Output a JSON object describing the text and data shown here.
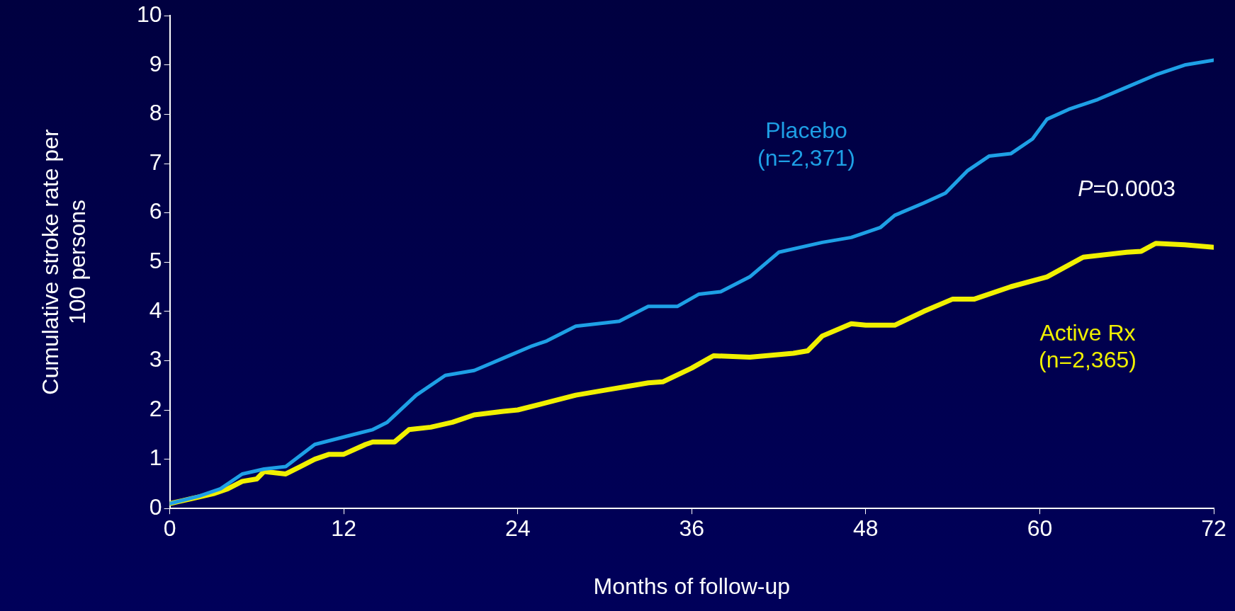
{
  "chart_data": {
    "type": "line",
    "xlabel": "Months of follow-up",
    "ylabel": "Cumulative stroke rate per 100 persons",
    "xlim": [
      0,
      72
    ],
    "xticks": [
      0,
      12,
      24,
      36,
      48,
      60,
      72
    ],
    "ylim": [
      0,
      10
    ],
    "yticks": [
      0,
      1,
      2,
      3,
      4,
      5,
      6,
      7,
      8,
      9,
      10
    ],
    "grid": false,
    "legend": false,
    "marker": "none",
    "line_style": "solid",
    "annotations": [
      "P=0.0003"
    ],
    "series": [
      {
        "name": "Placebo (n=2,371)",
        "color": "#1ea0e6",
        "x": [
          0,
          2,
          3.5,
          5,
          6.5,
          8,
          10,
          12,
          14,
          15,
          17,
          19,
          21,
          23,
          25,
          26,
          28,
          31,
          33,
          35,
          36.5,
          38,
          40,
          42,
          45,
          47,
          49,
          50,
          52,
          53.5,
          55,
          56.5,
          58,
          59.5,
          60.5,
          62,
          64,
          66,
          68,
          70,
          72
        ],
        "values": [
          0.1,
          0.25,
          0.4,
          0.7,
          0.8,
          0.85,
          1.3,
          1.45,
          1.6,
          1.75,
          2.3,
          2.7,
          2.8,
          3.05,
          3.3,
          3.4,
          3.7,
          3.8,
          4.1,
          4.1,
          4.35,
          4.4,
          4.7,
          5.2,
          5.4,
          5.5,
          5.7,
          5.95,
          6.2,
          6.4,
          6.85,
          7.15,
          7.2,
          7.5,
          7.9,
          8.1,
          8.3,
          8.55,
          8.8,
          9.0,
          9.1
        ]
      },
      {
        "name": "Active Rx (n=2,365)",
        "color": "#f0f000",
        "x": [
          0,
          1.5,
          3,
          4,
          5,
          6,
          6.5,
          8,
          9,
          10,
          11,
          12,
          13.5,
          14,
          15.5,
          16.5,
          18,
          19.5,
          21,
          23,
          24,
          26,
          28,
          30,
          32,
          33,
          34,
          36,
          37.5,
          40,
          43,
          44,
          45,
          47,
          48,
          50,
          52,
          54,
          55.5,
          58,
          60.5,
          63,
          66,
          67,
          68,
          70,
          72
        ],
        "values": [
          0.1,
          0.2,
          0.3,
          0.4,
          0.55,
          0.6,
          0.75,
          0.7,
          0.85,
          1.0,
          1.1,
          1.1,
          1.3,
          1.35,
          1.35,
          1.6,
          1.65,
          1.75,
          1.9,
          1.97,
          2.0,
          2.15,
          2.3,
          2.4,
          2.5,
          2.55,
          2.57,
          2.85,
          3.1,
          3.07,
          3.15,
          3.2,
          3.5,
          3.75,
          3.72,
          3.72,
          4.0,
          4.25,
          4.25,
          4.5,
          4.7,
          5.1,
          5.2,
          5.22,
          5.38,
          5.35,
          5.3
        ]
      }
    ]
  }
}
